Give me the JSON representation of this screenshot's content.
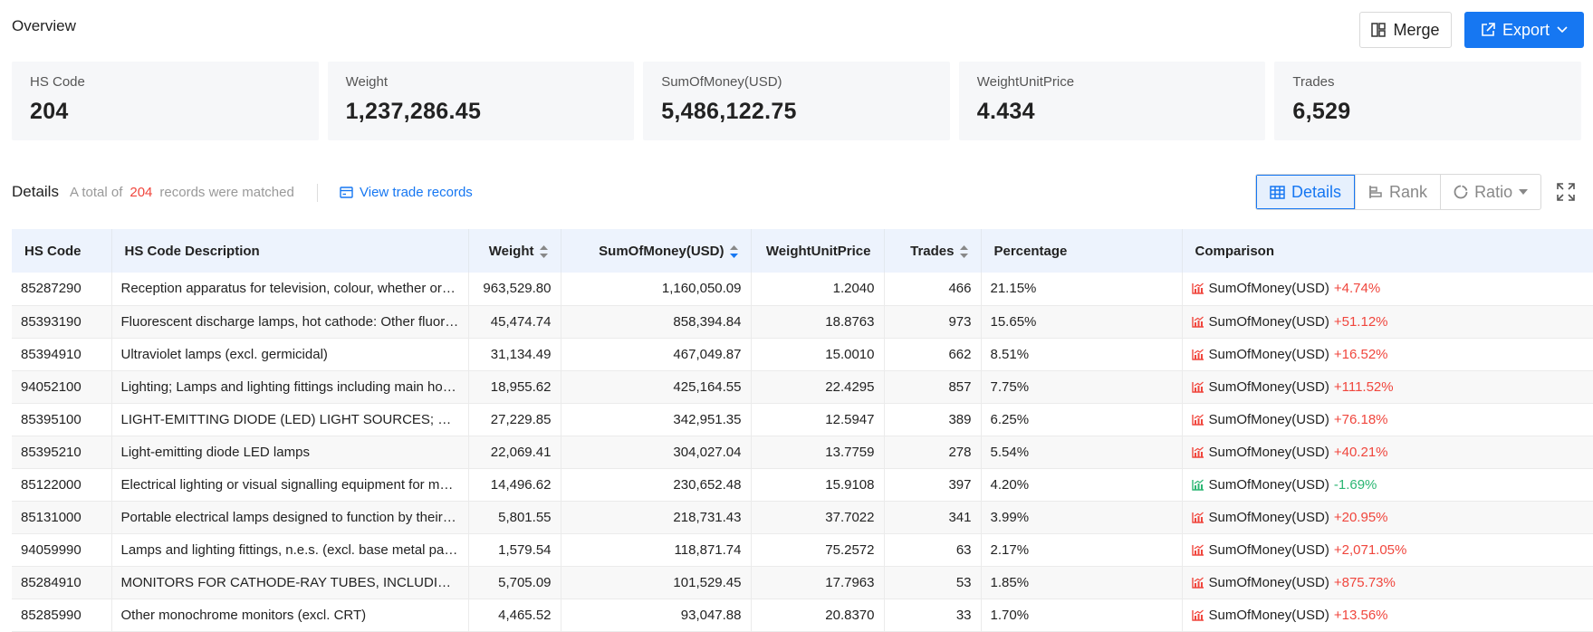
{
  "header": {
    "title": "Overview",
    "merge_label": "Merge",
    "export_label": "Export"
  },
  "cards": [
    {
      "label": "HS Code",
      "value": "204"
    },
    {
      "label": "Weight",
      "value": "1,237,286.45"
    },
    {
      "label": "SumOfMoney(USD)",
      "value": "5,486,122.75"
    },
    {
      "label": "WeightUnitPrice",
      "value": "4.434"
    },
    {
      "label": "Trades",
      "value": "6,529"
    }
  ],
  "details": {
    "title": "Details",
    "total_prefix": "A total of",
    "total_count": "204",
    "total_suffix": "records were matched",
    "view_link": "View trade records",
    "tabs": [
      "Details",
      "Rank",
      "Ratio"
    ],
    "active_tab": "Details"
  },
  "table": {
    "columns": [
      "HS Code",
      "HS Code Description",
      "Weight",
      "SumOfMoney(USD)",
      "WeightUnitPrice",
      "Trades",
      "Percentage",
      "Comparison"
    ],
    "rows": [
      {
        "code": "85287290",
        "desc": "Reception apparatus for television, colour, whether or not incorporating radio-broadcast receivers",
        "weight": "963,529.80",
        "money": "1,160,050.09",
        "unit": "1.2040",
        "trades": "466",
        "pct": "21.15%",
        "cmp_label": "SumOfMoney(USD)",
        "cmp_value": "+4.74%",
        "trend": "up"
      },
      {
        "code": "85393190",
        "desc": "Fluorescent discharge lamps, hot cathode: Other fluorescent, hot cathode lamps",
        "weight": "45,474.74",
        "money": "858,394.84",
        "unit": "18.8763",
        "trades": "973",
        "pct": "15.65%",
        "cmp_label": "SumOfMoney(USD)",
        "cmp_value": "+51.12%",
        "trend": "up"
      },
      {
        "code": "85394910",
        "desc": "Ultraviolet lamps (excl. germicidal)",
        "weight": "31,134.49",
        "money": "467,049.87",
        "unit": "15.0010",
        "trades": "662",
        "pct": "8.51%",
        "cmp_label": "SumOfMoney(USD)",
        "cmp_value": "+16.52%",
        "trend": "up"
      },
      {
        "code": "94052100",
        "desc": "Lighting; Lamps and lighting fittings including main housings for electric table, desk, bedside or floor-standing lamps",
        "weight": "18,955.62",
        "money": "425,164.55",
        "unit": "22.4295",
        "trades": "857",
        "pct": "7.75%",
        "cmp_label": "SumOfMoney(USD)",
        "cmp_value": "+111.52%",
        "trend": "up"
      },
      {
        "code": "85395100",
        "desc": "LIGHT-EMITTING DIODE (LED) LIGHT SOURCES; LED LAMPS, LED MODULES",
        "weight": "27,229.85",
        "money": "342,951.35",
        "unit": "12.5947",
        "trades": "389",
        "pct": "6.25%",
        "cmp_label": "SumOfMoney(USD)",
        "cmp_value": "+76.18%",
        "trend": "up"
      },
      {
        "code": "85395210",
        "desc": "Light-emitting diode LED lamps",
        "weight": "22,069.41",
        "money": "304,027.04",
        "unit": "13.7759",
        "trades": "278",
        "pct": "5.54%",
        "cmp_label": "SumOfMoney(USD)",
        "cmp_value": "+40.21%",
        "trend": "up"
      },
      {
        "code": "85122000",
        "desc": "Electrical lighting or visual signalling equipment for motor vehicles",
        "weight": "14,496.62",
        "money": "230,652.48",
        "unit": "15.9108",
        "trades": "397",
        "pct": "4.20%",
        "cmp_label": "SumOfMoney(USD)",
        "cmp_value": "-1.69%",
        "trend": "down"
      },
      {
        "code": "85131000",
        "desc": "Portable electrical lamps designed to function by their own source of energy",
        "weight": "5,801.55",
        "money": "218,731.43",
        "unit": "37.7022",
        "trades": "341",
        "pct": "3.99%",
        "cmp_label": "SumOfMoney(USD)",
        "cmp_value": "+20.95%",
        "trend": "up"
      },
      {
        "code": "94059990",
        "desc": "Lamps and lighting fittings, n.e.s. (excl. base metal parts thereof)",
        "weight": "1,579.54",
        "money": "118,871.74",
        "unit": "75.2572",
        "trades": "63",
        "pct": "2.17%",
        "cmp_label": "SumOfMoney(USD)",
        "cmp_value": "+2,071.05%",
        "trend": "up"
      },
      {
        "code": "85284910",
        "desc": "MONITORS FOR CATHODE-RAY TUBES, INCLUDING CRT PROJECTORS",
        "weight": "5,705.09",
        "money": "101,529.45",
        "unit": "17.7963",
        "trades": "53",
        "pct": "1.85%",
        "cmp_label": "SumOfMoney(USD)",
        "cmp_value": "+875.73%",
        "trend": "up"
      },
      {
        "code": "85285990",
        "desc": "Other monochrome monitors (excl. CRT)",
        "weight": "4,465.52",
        "money": "93,047.88",
        "unit": "20.8370",
        "trades": "33",
        "pct": "1.70%",
        "cmp_label": "SumOfMoney(USD)",
        "cmp_value": "+13.56%",
        "trend": "up"
      }
    ]
  },
  "colors": {
    "accent": "#1677f2",
    "up": "#f0463d",
    "down": "#2bb673"
  }
}
